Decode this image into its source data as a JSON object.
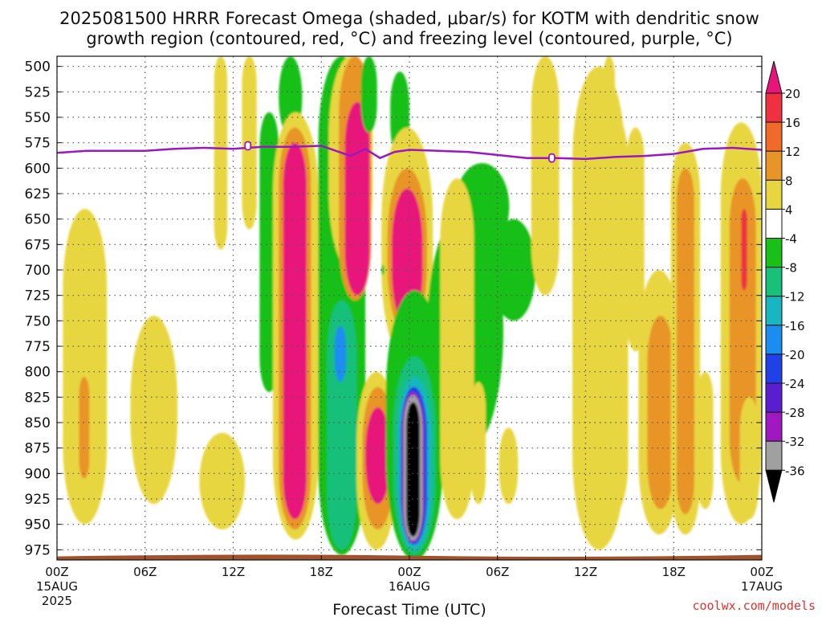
{
  "title": {
    "line1": "2025081500 HRRR Forecast Omega (shaded, μbar/s) for KOTM with dendritic snow",
    "line2": "growth region (contoured, red, °C) and freezing level (contoured, purple, °C)"
  },
  "credit": "coolwx.com/models",
  "colors": {
    "freezing_line": "#9a18c0",
    "ground": "#a0522d",
    "grid": "#555555"
  },
  "chart_data": {
    "type": "heatmap",
    "xlabel": "Forecast Time (UTC)",
    "ylabel": "",
    "x_range_hours": [
      0,
      48
    ],
    "y_range_mb": [
      490,
      985
    ],
    "y_inverted": true,
    "grid": true,
    "legend_position": "right",
    "y_ticks": [
      500,
      525,
      550,
      575,
      600,
      625,
      650,
      675,
      700,
      725,
      750,
      775,
      800,
      825,
      850,
      875,
      900,
      925,
      950,
      975
    ],
    "x_ticks": [
      {
        "hour": 0,
        "label": "00Z",
        "date1": "15AUG",
        "date2": "2025"
      },
      {
        "hour": 6,
        "label": "06Z",
        "date1": "",
        "date2": ""
      },
      {
        "hour": 12,
        "label": "12Z",
        "date1": "",
        "date2": ""
      },
      {
        "hour": 18,
        "label": "18Z",
        "date1": "",
        "date2": ""
      },
      {
        "hour": 24,
        "label": "00Z",
        "date1": "16AUG",
        "date2": ""
      },
      {
        "hour": 30,
        "label": "06Z",
        "date1": "",
        "date2": ""
      },
      {
        "hour": 36,
        "label": "12Z",
        "date1": "",
        "date2": ""
      },
      {
        "hour": 42,
        "label": "18Z",
        "date1": "",
        "date2": ""
      },
      {
        "hour": 48,
        "label": "00Z",
        "date1": "17AUG",
        "date2": ""
      }
    ],
    "colorbar": {
      "labels": [
        "20",
        "16",
        "12",
        "8",
        "4",
        "-4",
        "-8",
        "-12",
        "-16",
        "-20",
        "-24",
        "-28",
        "-32",
        "-36"
      ],
      "bins": [
        {
          "lo": 16,
          "hi": 20,
          "color": "#ee3040"
        },
        {
          "lo": 12,
          "hi": 16,
          "color": "#f26a2a"
        },
        {
          "lo": 8,
          "hi": 12,
          "color": "#e89428"
        },
        {
          "lo": 4,
          "hi": 8,
          "color": "#e8d640"
        },
        {
          "lo": -4,
          "hi": 4,
          "color": "#ffffff"
        },
        {
          "lo": -8,
          "hi": -4,
          "color": "#18c018"
        },
        {
          "lo": -12,
          "hi": -8,
          "color": "#18c07a"
        },
        {
          "lo": -16,
          "hi": -12,
          "color": "#18b6c0"
        },
        {
          "lo": -20,
          "hi": -16,
          "color": "#1a8ef0"
        },
        {
          "lo": -24,
          "hi": -20,
          "color": "#2040e8"
        },
        {
          "lo": -28,
          "hi": -24,
          "color": "#5a1ed0"
        },
        {
          "lo": -32,
          "hi": -28,
          "color": "#a018c0"
        },
        {
          "lo": -36,
          "hi": -32,
          "color": "#a0a0a0"
        }
      ],
      "top_arrow_color": "#e8147a",
      "bottom_arrow_color": "#000000"
    },
    "freezing_level": {
      "hours": [
        0,
        2,
        4,
        6,
        8,
        10,
        12,
        14,
        16,
        18,
        20,
        21,
        22,
        23,
        24,
        26,
        28,
        30,
        32,
        34,
        36,
        38,
        40,
        42,
        44,
        46,
        48
      ],
      "mb": [
        585,
        583,
        583,
        583,
        581,
        580,
        581,
        579,
        579,
        578,
        588,
        581,
        590,
        584,
        582,
        583,
        584,
        587,
        590,
        590,
        591,
        589,
        588,
        586,
        581,
        580,
        582
      ],
      "marker_label": "0"
    },
    "omega_regions": [
      {
        "c": "#e8d640",
        "h": [
          0.4,
          3.4
        ],
        "p": [
          640,
          950
        ]
      },
      {
        "c": "#e89428",
        "h": [
          1.5,
          2.2
        ],
        "p": [
          805,
          905
        ]
      },
      {
        "c": "#e8d640",
        "h": [
          5.0,
          8.2
        ],
        "p": [
          745,
          930
        ]
      },
      {
        "c": "#e8d640",
        "h": [
          9.7,
          12.8
        ],
        "p": [
          860,
          955
        ]
      },
      {
        "c": "#e8d640",
        "h": [
          10.7,
          11.6
        ],
        "p": [
          490,
          680
        ]
      },
      {
        "c": "#e8d640",
        "h": [
          12.6,
          13.6
        ],
        "p": [
          490,
          660
        ]
      },
      {
        "c": "#18c018",
        "h": [
          13.8,
          15.1
        ],
        "p": [
          545,
          820
        ]
      },
      {
        "c": "#18c018",
        "h": [
          15.1,
          16.7
        ],
        "p": [
          490,
          570
        ]
      },
      {
        "c": "#e8d640",
        "h": [
          14.7,
          17.8
        ],
        "p": [
          545,
          965
        ]
      },
      {
        "c": "#e89428",
        "h": [
          15.1,
          17.3
        ],
        "p": [
          560,
          955
        ]
      },
      {
        "c": "#e8147a",
        "h": [
          15.4,
          17.0
        ],
        "p": [
          575,
          945
        ]
      },
      {
        "c": "#18c018",
        "h": [
          17.8,
          21.0
        ],
        "p": [
          490,
          980
        ]
      },
      {
        "c": "#18c07a",
        "h": [
          18.4,
          20.4
        ],
        "p": [
          730,
          975
        ]
      },
      {
        "c": "#1a8ef0",
        "h": [
          18.9,
          19.7
        ],
        "p": [
          755,
          810
        ]
      },
      {
        "c": "#e8d640",
        "h": [
          18.5,
          21.5
        ],
        "p": [
          490,
          700
        ]
      },
      {
        "c": "#e89428",
        "h": [
          19.2,
          21.4
        ],
        "p": [
          490,
          730
        ]
      },
      {
        "c": "#e8147a",
        "h": [
          19.6,
          21.3
        ],
        "p": [
          535,
          725
        ]
      },
      {
        "c": "#e8d640",
        "h": [
          20.4,
          23.1
        ],
        "p": [
          800,
          975
        ]
      },
      {
        "c": "#e89428",
        "h": [
          20.8,
          22.9
        ],
        "p": [
          815,
          955
        ]
      },
      {
        "c": "#e8147a",
        "h": [
          21.0,
          22.7
        ],
        "p": [
          835,
          930
        ]
      },
      {
        "c": "#18c018",
        "h": [
          20.7,
          21.8
        ],
        "p": [
          490,
          565
        ]
      },
      {
        "c": "#18c018",
        "h": [
          22.7,
          24.0
        ],
        "p": [
          505,
          590
        ]
      },
      {
        "c": "#e8d640",
        "h": [
          22.1,
          25.6
        ],
        "p": [
          560,
          790
        ]
      },
      {
        "c": "#e89428",
        "h": [
          22.5,
          25.2
        ],
        "p": [
          600,
          765
        ]
      },
      {
        "c": "#e8147a",
        "h": [
          22.8,
          24.9
        ],
        "p": [
          620,
          755
        ]
      },
      {
        "c": "#18c018",
        "h": [
          22.4,
          26.3
        ],
        "p": [
          720,
          985
        ]
      },
      {
        "c": "#18c07a",
        "h": [
          22.9,
          25.8
        ],
        "p": [
          785,
          980
        ]
      },
      {
        "c": "#18b6c0",
        "h": [
          23.2,
          25.5
        ],
        "p": [
          805,
          975
        ]
      },
      {
        "c": "#2040e8",
        "h": [
          23.4,
          25.2
        ],
        "p": [
          815,
          970
        ]
      },
      {
        "c": "#a018c0",
        "h": [
          23.5,
          25.0
        ],
        "p": [
          820,
          968
        ]
      },
      {
        "c": "#a0a0a0",
        "h": [
          23.6,
          24.9
        ],
        "p": [
          823,
          966
        ]
      },
      {
        "c": "#000000",
        "h": [
          23.8,
          24.7
        ],
        "p": [
          830,
          962
        ]
      },
      {
        "c": "#18c018",
        "h": [
          25.2,
          30.4
        ],
        "p": [
          640,
          880
        ]
      },
      {
        "c": "#18c018",
        "h": [
          26.4,
          29.8
        ],
        "p": [
          610,
          730
        ]
      },
      {
        "c": "#18c018",
        "h": [
          27.1,
          30.8
        ],
        "p": [
          595,
          680
        ]
      },
      {
        "c": "#18c018",
        "h": [
          29.6,
          32.6
        ],
        "p": [
          650,
          750
        ]
      },
      {
        "c": "#e8d640",
        "h": [
          26.1,
          28.4
        ],
        "p": [
          610,
          945
        ]
      },
      {
        "c": "#e8d640",
        "h": [
          28.2,
          29.2
        ],
        "p": [
          810,
          930
        ]
      },
      {
        "c": "#e8d640",
        "h": [
          30.1,
          31.4
        ],
        "p": [
          855,
          930
        ]
      },
      {
        "c": "#e8d640",
        "h": [
          32.3,
          34.2
        ],
        "p": [
          490,
          725
        ]
      },
      {
        "c": "#18c018",
        "h": [
          35.6,
          36.2
        ],
        "p": [
          535,
          680
        ]
      },
      {
        "c": "#18c018",
        "h": [
          37.3,
          38.1
        ],
        "p": [
          590,
          665
        ]
      },
      {
        "c": "#e8d640",
        "h": [
          35.1,
          38.7
        ],
        "p": [
          500,
          975
        ]
      },
      {
        "c": "#e8d640",
        "h": [
          36.9,
          38.9
        ],
        "p": [
          545,
          940
        ]
      },
      {
        "c": "#e8d640",
        "h": [
          38.8,
          40.0
        ],
        "p": [
          560,
          780
        ]
      },
      {
        "c": "#e8d640",
        "h": [
          37.2,
          38.0
        ],
        "p": [
          490,
          580
        ]
      },
      {
        "c": "#e8d640",
        "h": [
          39.6,
          42.4
        ],
        "p": [
          700,
          960
        ]
      },
      {
        "c": "#e89428",
        "h": [
          40.2,
          42.0
        ],
        "p": [
          745,
          935
        ]
      },
      {
        "c": "#e8d640",
        "h": [
          41.8,
          43.8
        ],
        "p": [
          575,
          960
        ]
      },
      {
        "c": "#e89428",
        "h": [
          42.2,
          43.4
        ],
        "p": [
          600,
          940
        ]
      },
      {
        "c": "#18c018",
        "h": [
          43.7,
          44.3
        ],
        "p": [
          820,
          865
        ]
      },
      {
        "c": "#e8d640",
        "h": [
          43.6,
          44.7
        ],
        "p": [
          800,
          935
        ]
      },
      {
        "c": "#e8d640",
        "h": [
          45.2,
          48.0
        ],
        "p": [
          555,
          950
        ]
      },
      {
        "c": "#e89428",
        "h": [
          45.8,
          47.6
        ],
        "p": [
          610,
          910
        ]
      },
      {
        "c": "#e8d640",
        "h": [
          46.5,
          47.8
        ],
        "p": [
          825,
          945
        ]
      },
      {
        "c": "#ee3040",
        "h": [
          46.6,
          47.0
        ],
        "p": [
          640,
          720
        ]
      },
      {
        "c": "#18c018",
        "h": [
          22.1,
          22.3
        ],
        "p": [
          695,
          705
        ]
      }
    ]
  }
}
